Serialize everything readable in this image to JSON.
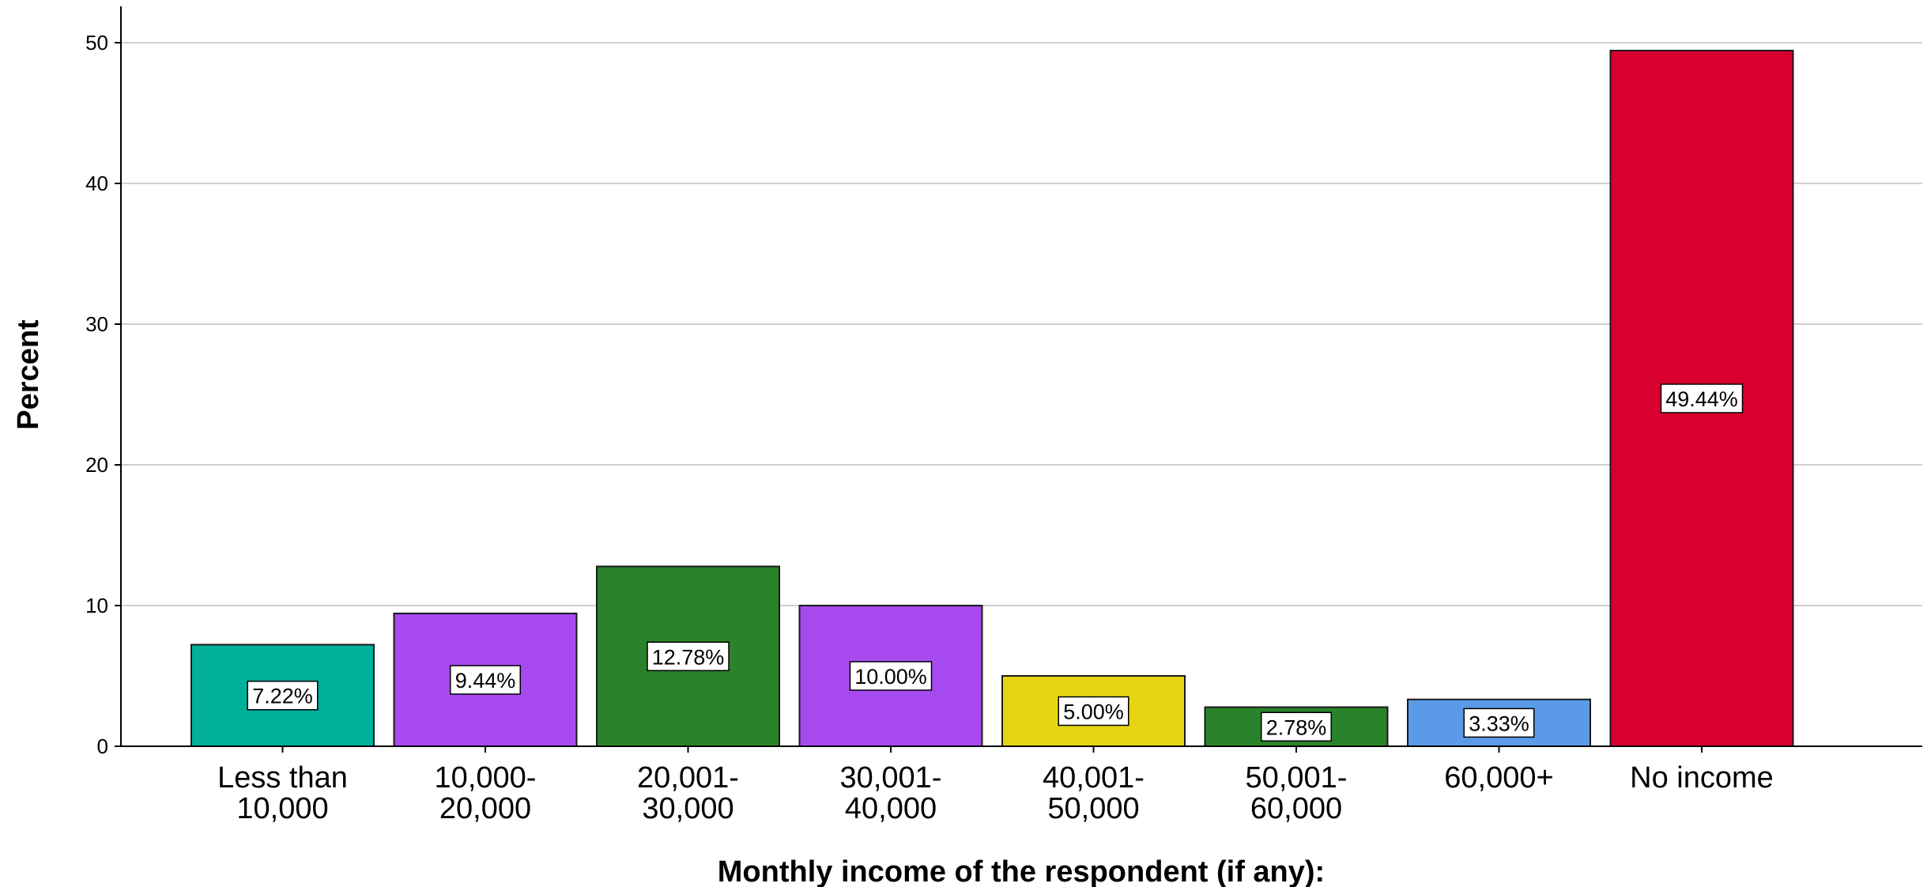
{
  "chart_data": {
    "type": "bar",
    "title": "",
    "xlabel": "Monthly income of the respondent (if any):",
    "ylabel": "Percent",
    "ylim": [
      0,
      52
    ],
    "yticks": [
      0,
      10,
      20,
      30,
      40,
      50
    ],
    "grid": true,
    "categories": [
      [
        "Less than",
        "10,000"
      ],
      [
        "10,000-",
        "20,000"
      ],
      [
        "20,001-",
        "30,000"
      ],
      [
        "30,001-",
        "40,000"
      ],
      [
        "40,001-",
        "50,000"
      ],
      [
        "50,001-",
        "60,000"
      ],
      [
        "60,000+"
      ],
      [
        "No income"
      ]
    ],
    "values": [
      7.22,
      9.44,
      12.78,
      10.0,
      5.0,
      2.78,
      3.33,
      49.44
    ],
    "data_labels": [
      "7.22%",
      "9.44%",
      "12.78%",
      "10.00%",
      "5.00%",
      "2.78%",
      "3.33%",
      "49.44%"
    ],
    "colors": [
      "#00b09b",
      "#a64af0",
      "#2a832a",
      "#a64af0",
      "#e5d510",
      "#2a832a",
      "#5b9ae6",
      "#d7002f"
    ]
  }
}
